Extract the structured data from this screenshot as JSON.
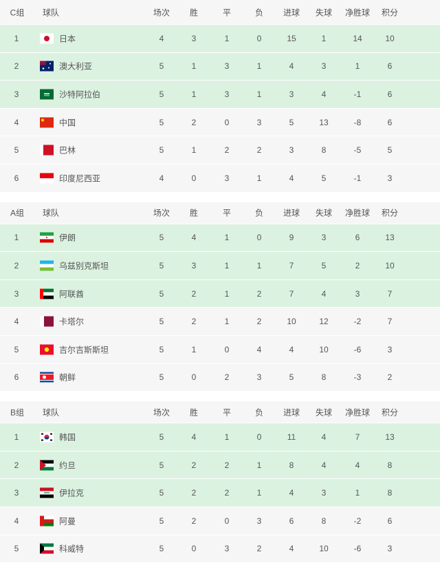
{
  "columns": [
    "球队",
    "场次",
    "胜",
    "平",
    "负",
    "进球",
    "失球",
    "净胜球",
    "积分"
  ],
  "colors": {
    "qualified_row": "#dcf2e1",
    "other_row": "#f6f6f6",
    "text": "#555555"
  },
  "groups": [
    {
      "label": "C组",
      "teams": [
        {
          "rank": "1",
          "flag": "japan-flag",
          "name": "日本",
          "p": "4",
          "w": "3",
          "d": "1",
          "l": "0",
          "gf": "15",
          "ga": "1",
          "gd": "14",
          "pts": "10",
          "q": true
        },
        {
          "rank": "2",
          "flag": "australia-flag",
          "name": "澳大利亚",
          "p": "5",
          "w": "1",
          "d": "3",
          "l": "1",
          "gf": "4",
          "ga": "3",
          "gd": "1",
          "pts": "6",
          "q": true
        },
        {
          "rank": "3",
          "flag": "saudi-arabia-flag",
          "name": "沙特阿拉伯",
          "p": "5",
          "w": "1",
          "d": "3",
          "l": "1",
          "gf": "3",
          "ga": "4",
          "gd": "-1",
          "pts": "6",
          "q": true
        },
        {
          "rank": "4",
          "flag": "china-flag",
          "name": "中国",
          "p": "5",
          "w": "2",
          "d": "0",
          "l": "3",
          "gf": "5",
          "ga": "13",
          "gd": "-8",
          "pts": "6",
          "q": false
        },
        {
          "rank": "5",
          "flag": "bahrain-flag",
          "name": "巴林",
          "p": "5",
          "w": "1",
          "d": "2",
          "l": "2",
          "gf": "3",
          "ga": "8",
          "gd": "-5",
          "pts": "5",
          "q": false
        },
        {
          "rank": "6",
          "flag": "indonesia-flag",
          "name": "印度尼西亚",
          "p": "4",
          "w": "0",
          "d": "3",
          "l": "1",
          "gf": "4",
          "ga": "5",
          "gd": "-1",
          "pts": "3",
          "q": false
        }
      ]
    },
    {
      "label": "A组",
      "teams": [
        {
          "rank": "1",
          "flag": "iran-flag",
          "name": "伊朗",
          "p": "5",
          "w": "4",
          "d": "1",
          "l": "0",
          "gf": "9",
          "ga": "3",
          "gd": "6",
          "pts": "13",
          "q": true
        },
        {
          "rank": "2",
          "flag": "uzbekistan-flag",
          "name": "乌兹别克斯坦",
          "p": "5",
          "w": "3",
          "d": "1",
          "l": "1",
          "gf": "7",
          "ga": "5",
          "gd": "2",
          "pts": "10",
          "q": true
        },
        {
          "rank": "3",
          "flag": "uae-flag",
          "name": "阿联酋",
          "p": "5",
          "w": "2",
          "d": "1",
          "l": "2",
          "gf": "7",
          "ga": "4",
          "gd": "3",
          "pts": "7",
          "q": true
        },
        {
          "rank": "4",
          "flag": "qatar-flag",
          "name": "卡塔尔",
          "p": "5",
          "w": "2",
          "d": "1",
          "l": "2",
          "gf": "10",
          "ga": "12",
          "gd": "-2",
          "pts": "7",
          "q": false
        },
        {
          "rank": "5",
          "flag": "kyrgyzstan-flag",
          "name": "吉尔吉斯斯坦",
          "p": "5",
          "w": "1",
          "d": "0",
          "l": "4",
          "gf": "4",
          "ga": "10",
          "gd": "-6",
          "pts": "3",
          "q": false
        },
        {
          "rank": "6",
          "flag": "north-korea-flag",
          "name": "朝鲜",
          "p": "5",
          "w": "0",
          "d": "2",
          "l": "3",
          "gf": "5",
          "ga": "8",
          "gd": "-3",
          "pts": "2",
          "q": false
        }
      ]
    },
    {
      "label": "B组",
      "teams": [
        {
          "rank": "1",
          "flag": "south-korea-flag",
          "name": "韩国",
          "p": "5",
          "w": "4",
          "d": "1",
          "l": "0",
          "gf": "11",
          "ga": "4",
          "gd": "7",
          "pts": "13",
          "q": true
        },
        {
          "rank": "2",
          "flag": "jordan-flag",
          "name": "约旦",
          "p": "5",
          "w": "2",
          "d": "2",
          "l": "1",
          "gf": "8",
          "ga": "4",
          "gd": "4",
          "pts": "8",
          "q": true
        },
        {
          "rank": "3",
          "flag": "iraq-flag",
          "name": "伊拉克",
          "p": "5",
          "w": "2",
          "d": "2",
          "l": "1",
          "gf": "4",
          "ga": "3",
          "gd": "1",
          "pts": "8",
          "q": true
        },
        {
          "rank": "4",
          "flag": "oman-flag",
          "name": "阿曼",
          "p": "5",
          "w": "2",
          "d": "0",
          "l": "3",
          "gf": "6",
          "ga": "8",
          "gd": "-2",
          "pts": "6",
          "q": false
        },
        {
          "rank": "5",
          "flag": "kuwait-flag",
          "name": "科威特",
          "p": "5",
          "w": "0",
          "d": "3",
          "l": "2",
          "gf": "4",
          "ga": "10",
          "gd": "-6",
          "pts": "3",
          "q": false
        }
      ]
    }
  ]
}
